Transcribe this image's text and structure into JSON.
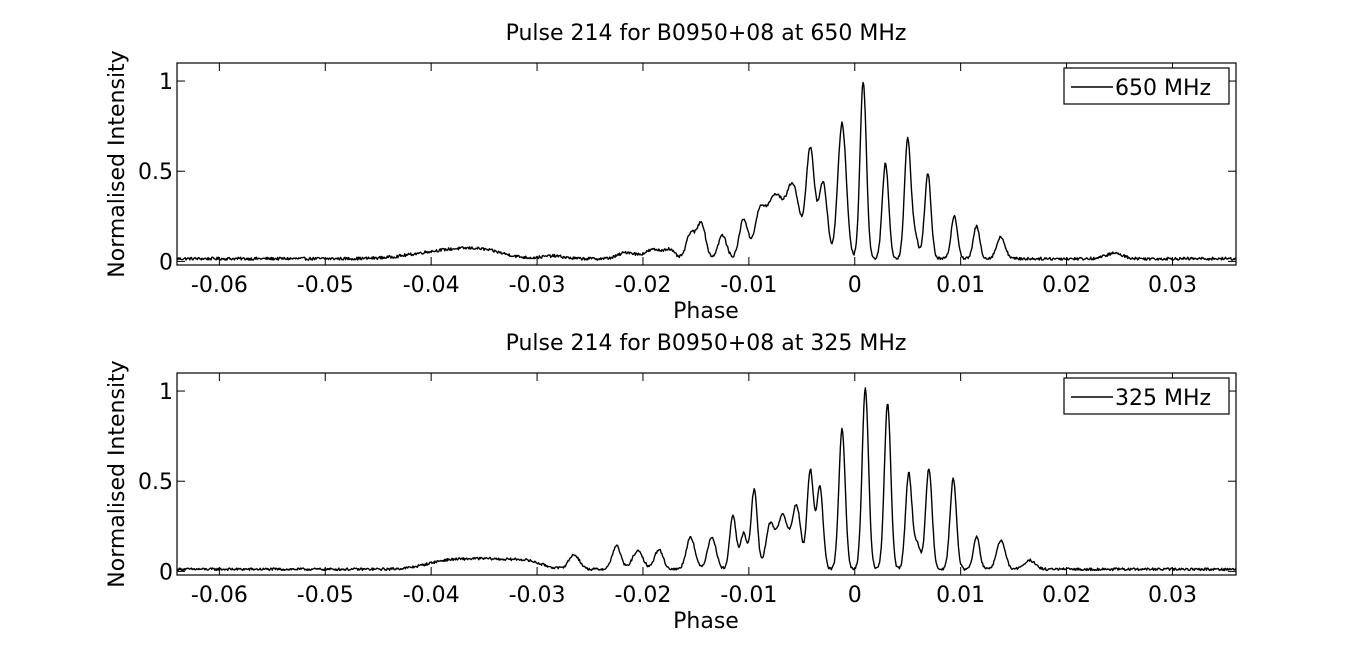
{
  "chart_data": [
    {
      "type": "line",
      "title": "Pulse 214 for B0950+08 at 650 MHz",
      "xlabel": "Phase",
      "ylabel": "Normalised Intensity",
      "xlim": [
        -0.064,
        0.036
      ],
      "ylim": [
        -0.02,
        1.1
      ],
      "xticks": [
        "-0.06",
        "-0.05",
        "-0.04",
        "-0.03",
        "-0.02",
        "-0.01",
        "0",
        "0.01",
        "0.02",
        "0.03"
      ],
      "xtick_values": [
        -0.06,
        -0.05,
        -0.04,
        -0.03,
        -0.02,
        -0.01,
        0,
        0.01,
        0.02,
        0.03
      ],
      "yticks": [
        "0",
        "0.5",
        "1"
      ],
      "ytick_values": [
        0,
        0.5,
        1
      ],
      "legend": "top-right",
      "series": [
        {
          "name": "650 MHz",
          "color": "#000000",
          "baseline": 0.015,
          "noise": 0.008,
          "features": [
            [
              -0.0385,
              0.045,
              0.003
            ],
            [
              -0.035,
              0.03,
              0.002
            ],
            [
              -0.0285,
              0.015,
              0.001
            ],
            [
              -0.0215,
              0.035,
              0.0008
            ],
            [
              -0.019,
              0.05,
              0.0008
            ],
            [
              -0.0175,
              0.045,
              0.0005
            ],
            [
              -0.0155,
              0.14,
              0.0004
            ],
            [
              -0.0145,
              0.2,
              0.0004
            ],
            [
              -0.0125,
              0.13,
              0.0004
            ],
            [
              -0.0105,
              0.22,
              0.0004
            ],
            [
              -0.009,
              0.22,
              0.0005
            ],
            [
              -0.0075,
              0.35,
              0.0008
            ],
            [
              -0.0058,
              0.38,
              0.0006
            ],
            [
              -0.0042,
              0.6,
              0.0004
            ],
            [
              -0.003,
              0.42,
              0.0004
            ],
            [
              -0.0012,
              0.75,
              0.0004
            ],
            [
              0.0008,
              0.98,
              0.0003
            ],
            [
              0.0029,
              0.53,
              0.0003
            ],
            [
              0.005,
              0.66,
              0.0003
            ],
            [
              0.0057,
              0.12,
              0.0003
            ],
            [
              0.0069,
              0.47,
              0.0003
            ],
            [
              0.0094,
              0.24,
              0.0003
            ],
            [
              0.0115,
              0.18,
              0.0003
            ],
            [
              0.0138,
              0.12,
              0.0004
            ],
            [
              0.0245,
              0.03,
              0.0008
            ]
          ]
        }
      ]
    },
    {
      "type": "line",
      "title": "Pulse 214 for B0950+08 at 325 MHz",
      "xlabel": "Phase",
      "ylabel": "Normalised Intensity",
      "xlim": [
        -0.064,
        0.036
      ],
      "ylim": [
        -0.02,
        1.1
      ],
      "xticks": [
        "-0.06",
        "-0.05",
        "-0.04",
        "-0.03",
        "-0.02",
        "-0.01",
        "0",
        "0.01",
        "0.02",
        "0.03"
      ],
      "xtick_values": [
        -0.06,
        -0.05,
        -0.04,
        -0.03,
        -0.02,
        -0.01,
        0,
        0.01,
        0.02,
        0.03
      ],
      "yticks": [
        "0",
        "0.5",
        "1"
      ],
      "ytick_values": [
        0,
        0.5,
        1
      ],
      "legend": "top-right",
      "series": [
        {
          "name": "325 MHz",
          "color": "#000000",
          "baseline": 0.012,
          "noise": 0.007,
          "features": [
            [
              -0.0385,
              0.045,
              0.002
            ],
            [
              -0.0345,
              0.05,
              0.002
            ],
            [
              -0.031,
              0.04,
              0.0015
            ],
            [
              -0.0265,
              0.08,
              0.0005
            ],
            [
              -0.0225,
              0.13,
              0.0004
            ],
            [
              -0.0205,
              0.1,
              0.0005
            ],
            [
              -0.0185,
              0.11,
              0.0004
            ],
            [
              -0.0155,
              0.18,
              0.0004
            ],
            [
              -0.0135,
              0.18,
              0.0004
            ],
            [
              -0.0115,
              0.3,
              0.0003
            ],
            [
              -0.0105,
              0.2,
              0.0003
            ],
            [
              -0.0095,
              0.44,
              0.0003
            ],
            [
              -0.008,
              0.24,
              0.0004
            ],
            [
              -0.0068,
              0.3,
              0.0005
            ],
            [
              -0.0055,
              0.35,
              0.0004
            ],
            [
              -0.0042,
              0.55,
              0.0003
            ],
            [
              -0.0033,
              0.46,
              0.0003
            ],
            [
              -0.0012,
              0.78,
              0.0003
            ],
            [
              0.001,
              1.0,
              0.0003
            ],
            [
              0.0031,
              0.92,
              0.0003
            ],
            [
              0.0051,
              0.53,
              0.0003
            ],
            [
              0.0059,
              0.14,
              0.0003
            ],
            [
              0.007,
              0.56,
              0.0003
            ],
            [
              0.0093,
              0.5,
              0.0003
            ],
            [
              0.0115,
              0.18,
              0.0003
            ],
            [
              0.0138,
              0.16,
              0.0004
            ],
            [
              0.0165,
              0.05,
              0.0005
            ]
          ]
        }
      ]
    }
  ]
}
